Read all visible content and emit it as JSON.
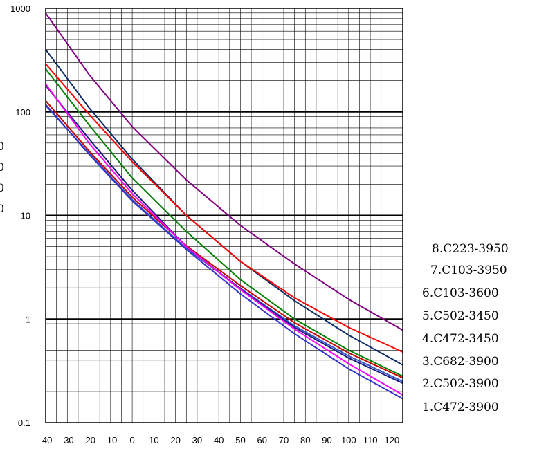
{
  "chart_data": {
    "type": "line",
    "title": "",
    "xlabel": "",
    "ylabel": "",
    "y_scale": "log",
    "xlim": [
      -40,
      125
    ],
    "ylim": [
      0.1,
      1000
    ],
    "grid": true,
    "x_ticks": [
      "-40",
      "-30",
      "-20",
      "-10",
      "0",
      "10",
      "20",
      "30",
      "40",
      "50",
      "60",
      "70",
      "80",
      "90",
      "100",
      "110",
      "120"
    ],
    "y_ticks": [
      "1000",
      "100",
      "10",
      "1",
      "0.1"
    ],
    "left_edge_glyphs": [
      "0",
      "0",
      "0",
      "0"
    ],
    "x": [
      -40,
      -20,
      0,
      25,
      50,
      75,
      100,
      125
    ],
    "series": [
      {
        "name": "1. C472-3900",
        "color": "#3333cc",
        "values": [
          118,
          39,
          13.8,
          4.7,
          1.75,
          0.72,
          0.33,
          0.17
        ]
      },
      {
        "name": "2. C502-3900",
        "color": "#ff00ff",
        "values": [
          186,
          50,
          16.2,
          5.0,
          1.92,
          0.8,
          0.37,
          0.185
        ]
      },
      {
        "name": "3. C682-3900",
        "color": "#cc0000",
        "values": [
          128,
          42,
          15.0,
          5.1,
          2.1,
          0.92,
          0.47,
          0.27
        ]
      },
      {
        "name": "4. C472-3450",
        "color": "#3355cc",
        "values": [
          115,
          40,
          14.2,
          4.8,
          1.98,
          0.86,
          0.44,
          0.25
        ]
      },
      {
        "name": "5. C502-3450",
        "color": "#1a1a80",
        "values": [
          180,
          55,
          17.5,
          5.0,
          1.95,
          0.83,
          0.42,
          0.24
        ]
      },
      {
        "name": "6. C103-3600",
        "color": "#008000",
        "values": [
          260,
          75,
          23,
          7.0,
          2.4,
          1.0,
          0.5,
          0.28
        ]
      },
      {
        "name": "7. C103-3950",
        "color": "#ff0000",
        "values": [
          290,
          95,
          33,
          10,
          3.6,
          1.6,
          0.83,
          0.48
        ]
      },
      {
        "name": "8. C223-3950",
        "color": "#800080",
        "values": [
          900,
          230,
          72,
          22,
          8.0,
          3.4,
          1.55,
          0.78
        ]
      }
    ],
    "navy_line": {
      "color": "#0d2b66",
      "values": [
        400,
        110,
        35,
        10,
        3.6,
        1.5,
        0.7,
        0.36
      ]
    }
  }
}
